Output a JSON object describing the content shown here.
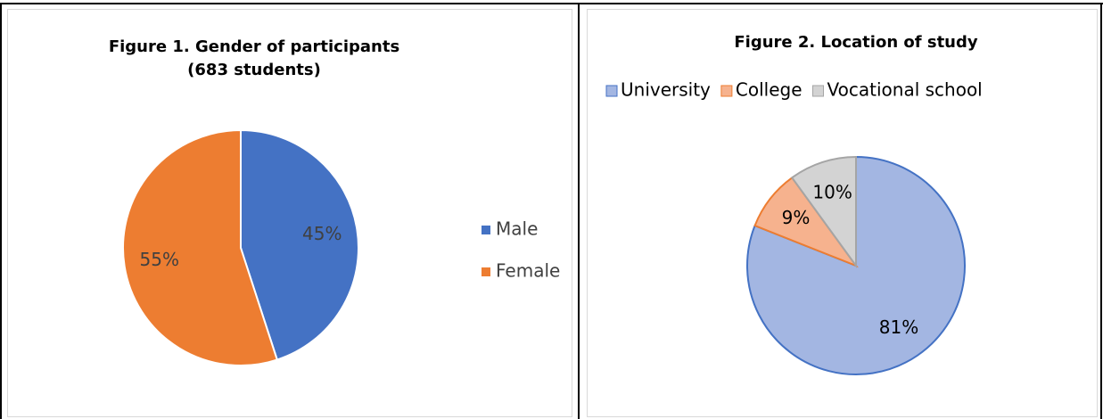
{
  "chart_data": [
    {
      "type": "pie",
      "title": "Figure 1. Gender of participants (683 students)",
      "categories": [
        "Male",
        "Female"
      ],
      "values": [
        45,
        55
      ],
      "value_labels": [
        "45%",
        "55%"
      ],
      "colors": [
        "#4472c4",
        "#ed7d31"
      ],
      "edge_colors": [
        "#ffffff",
        "#ffffff"
      ],
      "legend": "right"
    },
    {
      "type": "pie",
      "title": "Figure 2. Location of study",
      "categories": [
        "University",
        "College",
        "Vocational school"
      ],
      "values": [
        81,
        9,
        10
      ],
      "value_labels": [
        "81%",
        "9%",
        "10%"
      ],
      "colors": [
        "#a3b6e2",
        "#f6b28e",
        "#d3d3d3"
      ],
      "edge_colors": [
        "#4472c4",
        "#ed7d31",
        "#a5a5a5"
      ],
      "legend": "top"
    }
  ]
}
